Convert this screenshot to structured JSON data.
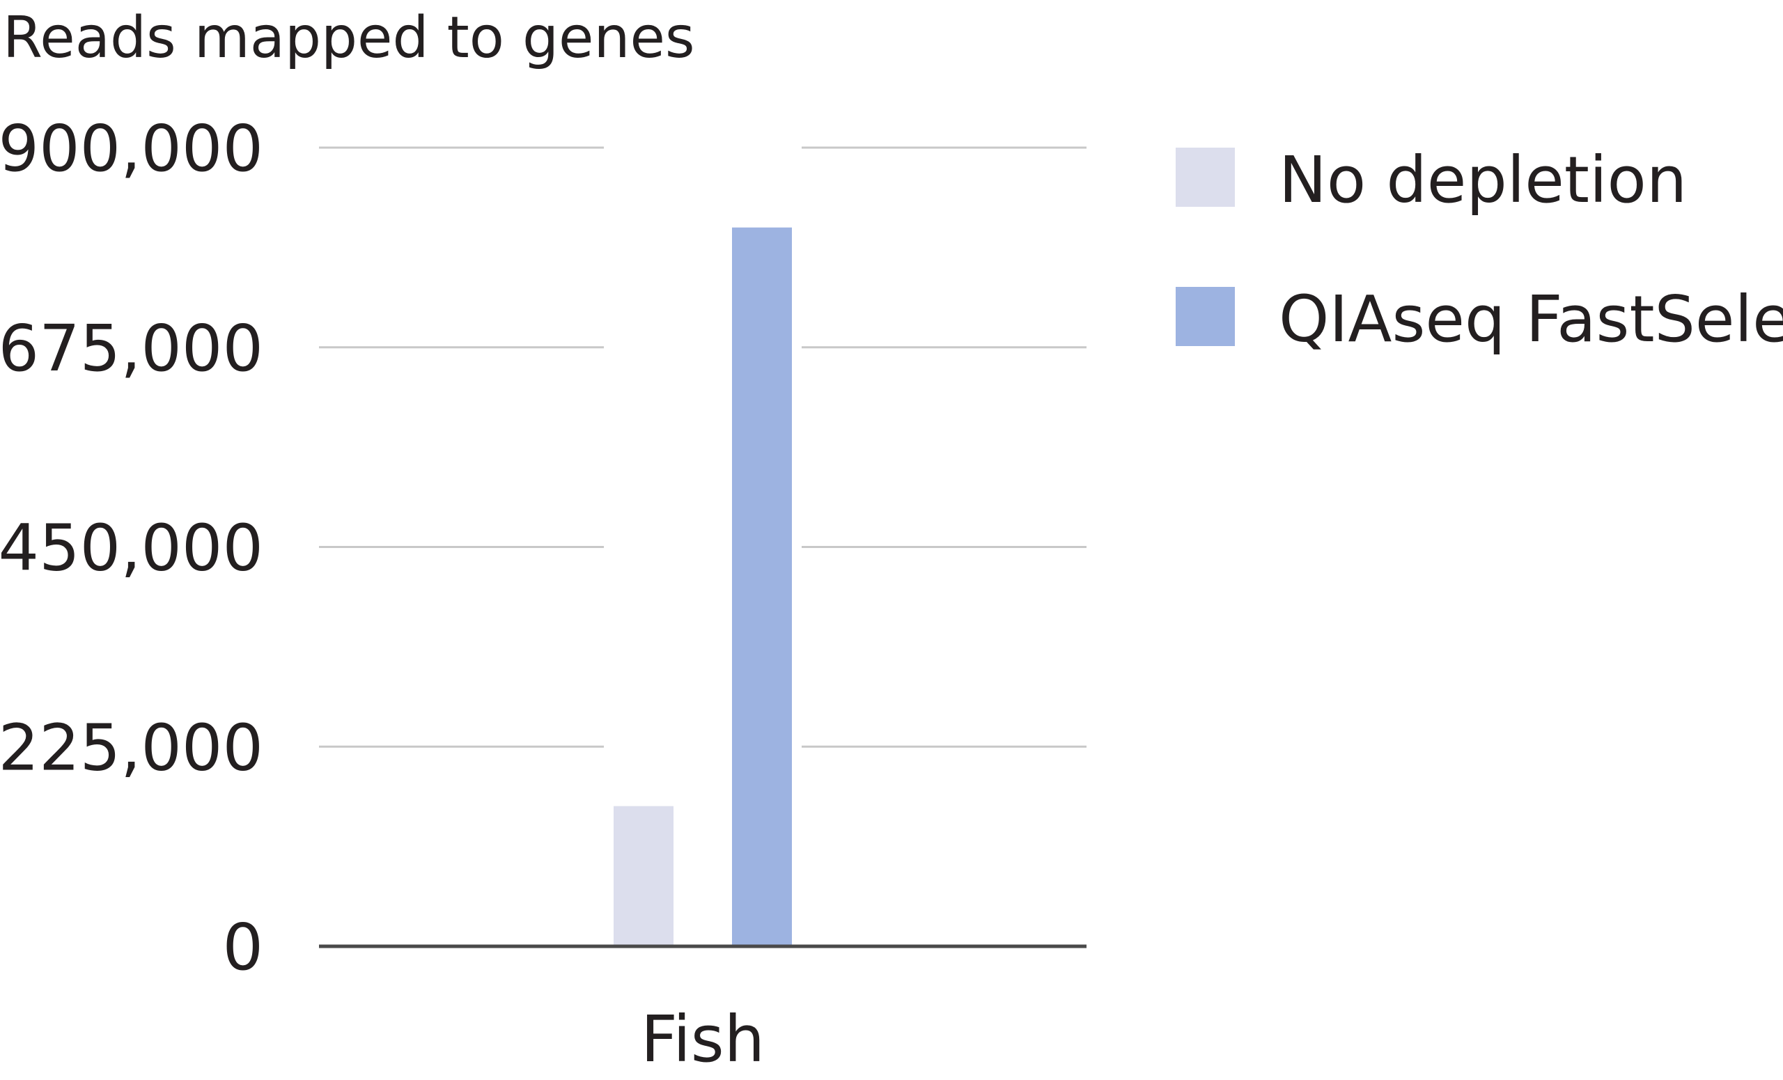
{
  "chart_data": {
    "type": "bar",
    "ylabel": "Reads mapped to genes",
    "categories": [
      "Fish"
    ],
    "series": [
      {
        "name": "No depletion",
        "values": [
          158000
        ],
        "color": "#dcdeed"
      },
      {
        "name": "QIAseq FastSelect",
        "values": [
          810000
        ],
        "color": "#9db3e1"
      }
    ],
    "ylim": [
      0,
      900000
    ],
    "yticks": [
      0,
      225000,
      450000,
      675000,
      900000
    ],
    "ytick_labels": [
      "0",
      "225,000",
      "450,000",
      "675,000",
      "900,000"
    ],
    "grid": true,
    "legend_position": "right",
    "colors": {
      "gridline": "#c8c8c8",
      "baseline": "#4a4a4a",
      "text": "#231f20"
    }
  }
}
